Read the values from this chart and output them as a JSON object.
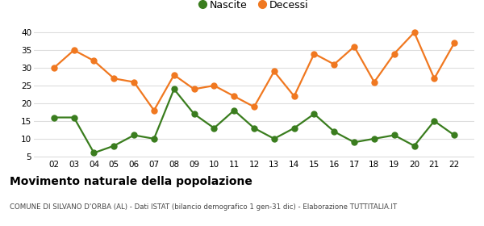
{
  "years": [
    "02",
    "03",
    "04",
    "05",
    "06",
    "07",
    "08",
    "09",
    "10",
    "11",
    "12",
    "13",
    "14",
    "15",
    "16",
    "17",
    "18",
    "19",
    "20",
    "21",
    "22"
  ],
  "nascite": [
    16,
    16,
    6,
    8,
    11,
    10,
    24,
    17,
    13,
    18,
    13,
    10,
    13,
    17,
    12,
    9,
    10,
    11,
    8,
    15,
    11
  ],
  "decessi": [
    30,
    35,
    32,
    27,
    26,
    18,
    28,
    24,
    25,
    22,
    19,
    29,
    22,
    34,
    31,
    36,
    26,
    34,
    40,
    27,
    37
  ],
  "nascite_color": "#3a7d1e",
  "decessi_color": "#f07820",
  "title": "Movimento naturale della popolazione",
  "subtitle": "COMUNE DI SILVANO D'ORBA (AL) - Dati ISTAT (bilancio demografico 1 gen-31 dic) - Elaborazione TUTTITALIA.IT",
  "legend_nascite": "Nascite",
  "legend_decessi": "Decessi",
  "ylim_min": 5,
  "ylim_max": 40,
  "yticks": [
    5,
    10,
    15,
    20,
    25,
    30,
    35,
    40
  ],
  "background_color": "#ffffff",
  "grid_color": "#dddddd",
  "marker_size": 5,
  "line_width": 1.6
}
